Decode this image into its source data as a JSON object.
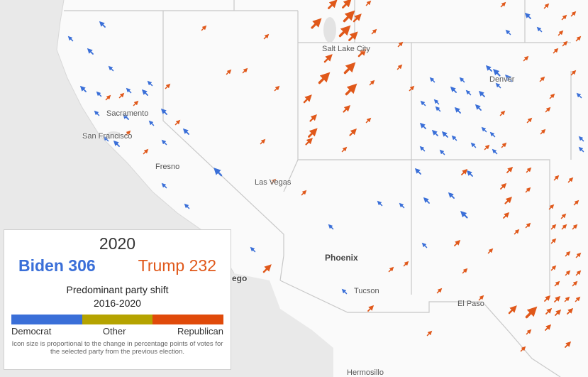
{
  "map": {
    "cities": [
      {
        "name": "Salt Lake City",
        "major": false
      },
      {
        "name": "Denver",
        "major": false
      },
      {
        "name": "Sacramento",
        "major": false
      },
      {
        "name": "San Francisco",
        "major": false
      },
      {
        "name": "Fresno",
        "major": false
      },
      {
        "name": "Las Vegas",
        "major": false
      },
      {
        "name": "Phoenix",
        "major": true
      },
      {
        "name": "Tucson",
        "major": false
      },
      {
        "name": "El Paso",
        "major": false
      },
      {
        "name": "Hermosillo",
        "major": false
      },
      {
        "name": "ego",
        "major": true
      }
    ],
    "colors": {
      "democrat": "#3a6fd8",
      "republican": "#e0581a",
      "land": "#fafafa",
      "sea": "#e6e6e6",
      "border": "#c8c8c8"
    }
  },
  "legend": {
    "year": "2020",
    "dem_candidate": "Biden 306",
    "rep_candidate": "Trump 232",
    "subtitle_line1": "Predominant party shift",
    "subtitle_line2": "2016-2020",
    "scale": [
      {
        "label": "Democrat",
        "color": "#3a6fd8"
      },
      {
        "label": "Other",
        "color": "#b5a300"
      },
      {
        "label": "Republican",
        "color": "#e04a0a"
      }
    ],
    "note": "Icon size is proportional to the change in percentage points of votes for the selected party from the previous election."
  }
}
